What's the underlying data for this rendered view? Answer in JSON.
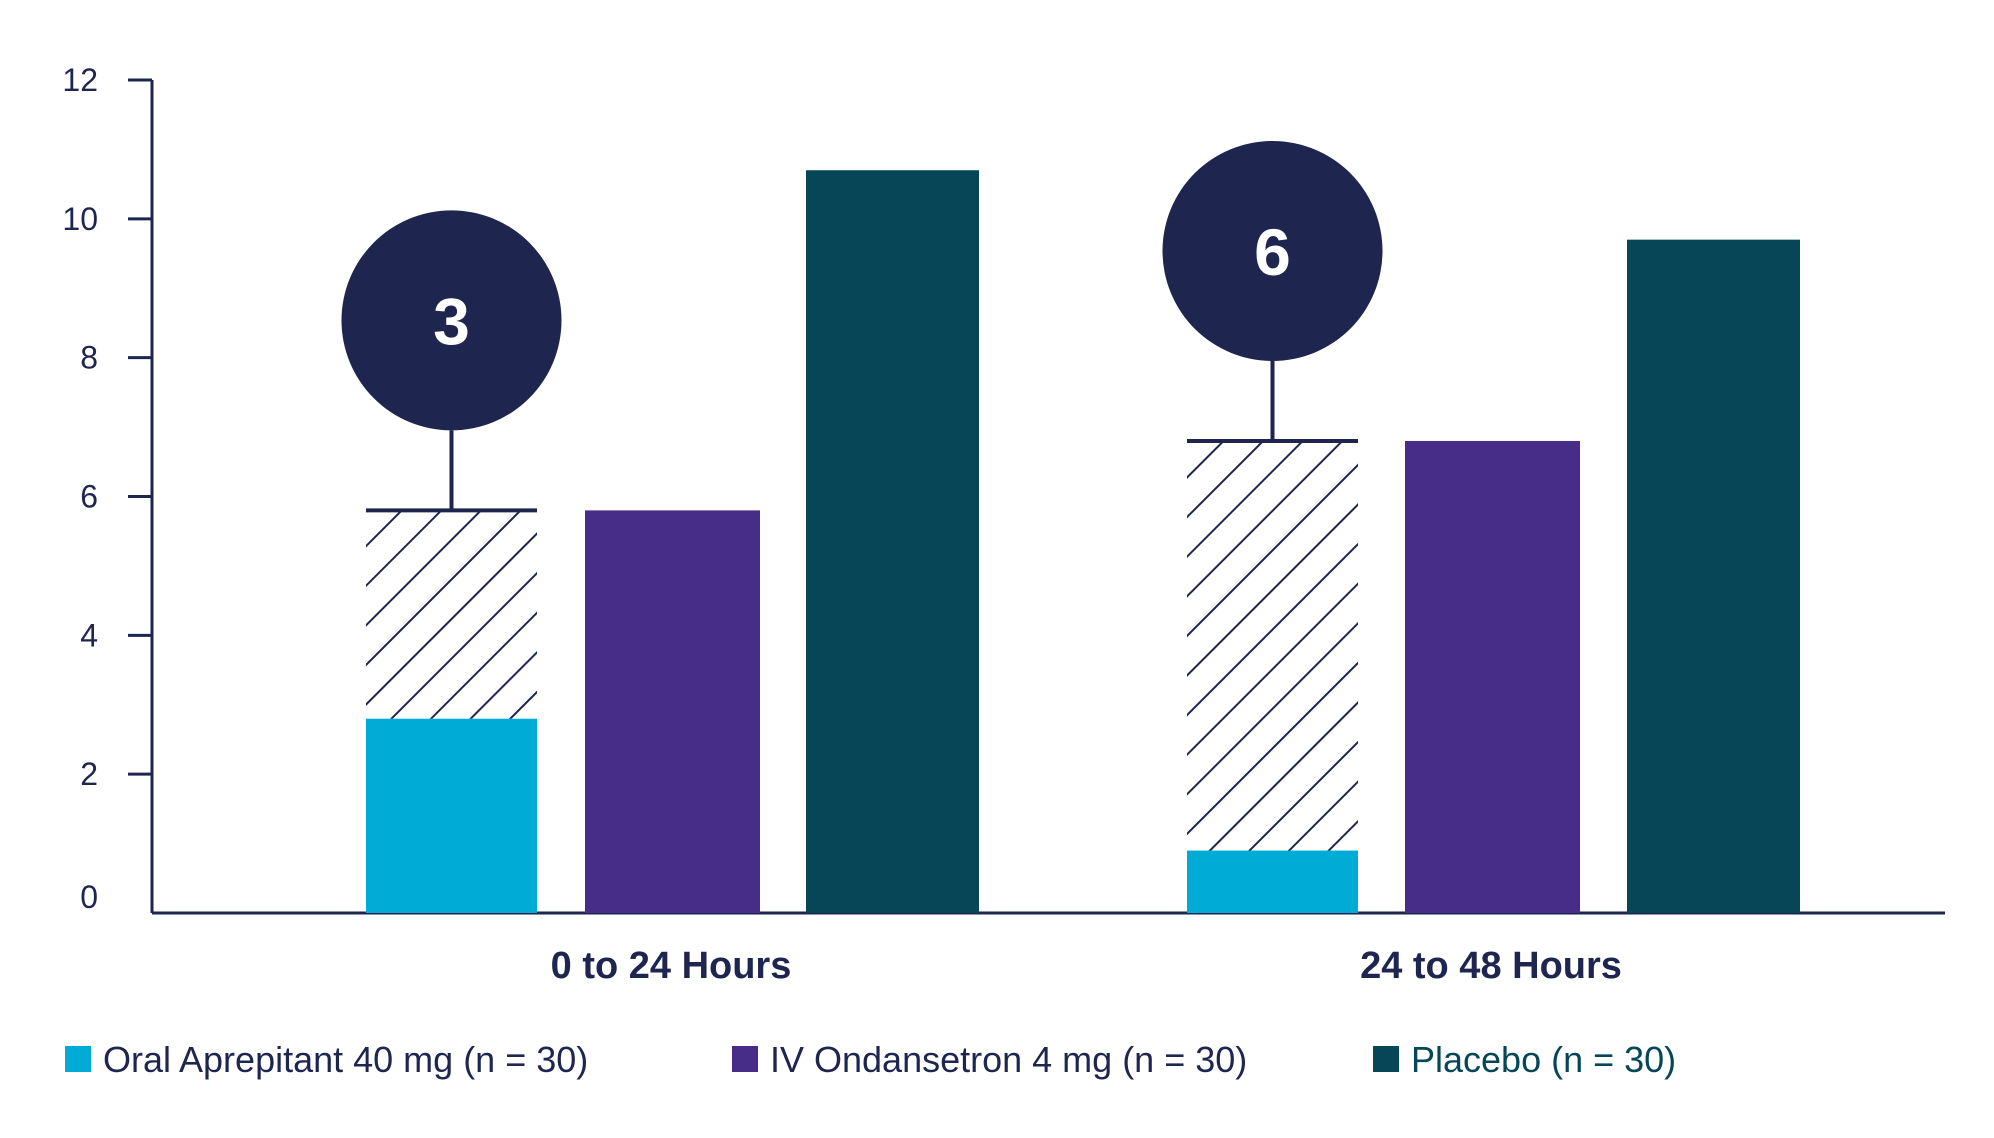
{
  "chart_data": {
    "type": "bar",
    "title": "",
    "xlabel": "",
    "ylabel": "",
    "ylim": [
      0,
      12
    ],
    "yticks": [
      "0",
      "2",
      "4",
      "6",
      "8",
      "10",
      "12"
    ],
    "grid": false,
    "legend_position": "bottom",
    "categories": [
      "0 to 24 Hours",
      "24 to 48 Hours"
    ],
    "series": [
      {
        "name": "Oral Aprepitant 40 mg (n = 30)",
        "values": [
          2.8,
          0.9
        ],
        "color": "#00acd6"
      },
      {
        "name": "IV Ondansetron 4 mg (n = 30)",
        "values": [
          5.8,
          6.8
        ],
        "color": "#472d87"
      },
      {
        "name": "Placebo (n = 30)",
        "values": [
          10.7,
          9.7
        ],
        "color": "#064656"
      }
    ],
    "annotations": [
      {
        "category": "0 to 24 Hours",
        "label": "3",
        "hatch_from": 2.8,
        "hatch_to": 5.8
      },
      {
        "category": "24 to 48 Hours",
        "label": "6",
        "hatch_from": 0.9,
        "hatch_to": 6.8
      }
    ],
    "colors": {
      "axis": "#1e2650",
      "callout": "#1e2650",
      "hatch": "#1e2650",
      "legend_text": [
        "#1e2650",
        "#1e2650",
        "#064656"
      ]
    }
  }
}
